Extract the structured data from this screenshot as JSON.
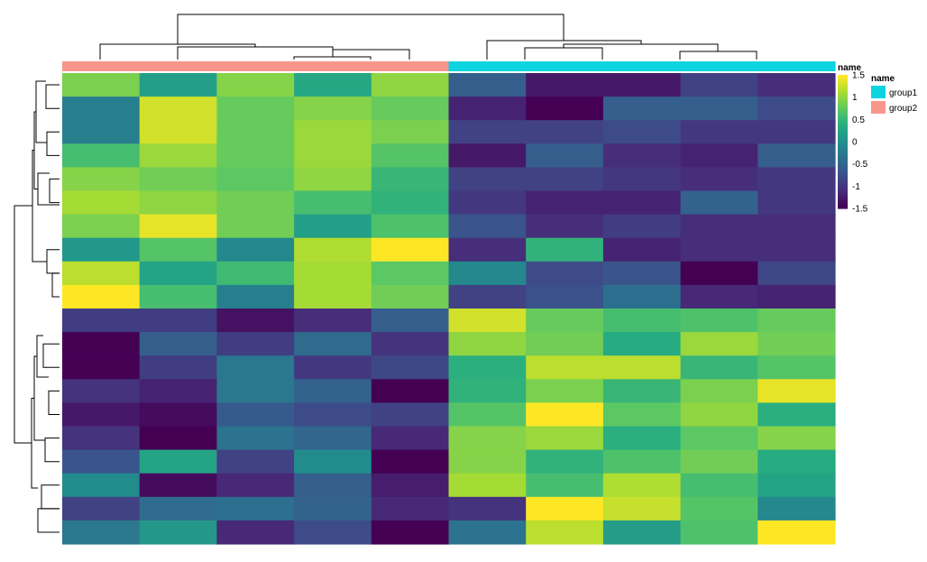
{
  "chart_data": {
    "type": "heatmap",
    "title": "",
    "n_rows": 20,
    "n_cols": 10,
    "values": [
      [
        0.9,
        0.2,
        0.95,
        0.3,
        1.0,
        -0.6,
        -1.3,
        -1.3,
        -0.9,
        -1.1
      ],
      [
        -0.2,
        1.3,
        0.8,
        0.95,
        0.8,
        -1.2,
        -1.6,
        -0.6,
        -0.6,
        -0.8
      ],
      [
        -0.2,
        1.3,
        0.8,
        1.05,
        0.9,
        -0.9,
        -0.9,
        -0.8,
        -1.0,
        -1.0
      ],
      [
        0.6,
        1.05,
        0.8,
        1.05,
        0.7,
        -1.3,
        -0.6,
        -1.1,
        -1.2,
        -0.6
      ],
      [
        0.95,
        0.85,
        0.75,
        1.0,
        0.5,
        -0.9,
        -0.9,
        -1.0,
        -1.1,
        -1.0
      ],
      [
        1.1,
        1.0,
        0.85,
        0.6,
        0.45,
        -1.0,
        -1.2,
        -1.2,
        -0.55,
        -1.0
      ],
      [
        0.9,
        1.4,
        0.85,
        0.2,
        0.65,
        -0.7,
        -1.1,
        -0.95,
        -1.1,
        -1.1
      ],
      [
        0.1,
        0.7,
        -0.1,
        1.15,
        1.5,
        -1.1,
        0.45,
        -1.2,
        -1.1,
        -1.1
      ],
      [
        1.2,
        0.25,
        0.55,
        1.1,
        0.75,
        -0.1,
        -0.8,
        -0.7,
        -1.5,
        -0.85
      ],
      [
        1.5,
        0.6,
        -0.2,
        1.1,
        0.85,
        -0.9,
        -0.75,
        -0.4,
        -1.15,
        -1.2
      ],
      [
        -0.95,
        -0.95,
        -1.35,
        -1.1,
        -0.6,
        1.3,
        0.8,
        0.6,
        0.65,
        0.8
      ],
      [
        -1.55,
        -0.6,
        -0.95,
        -0.45,
        -1.05,
        1.0,
        0.85,
        0.35,
        1.05,
        0.85
      ],
      [
        -1.55,
        -0.95,
        -0.3,
        -1.0,
        -0.85,
        0.4,
        1.2,
        1.2,
        0.5,
        0.7
      ],
      [
        -1.05,
        -1.2,
        -0.3,
        -0.55,
        -1.5,
        0.45,
        0.9,
        0.5,
        0.9,
        1.4
      ],
      [
        -1.3,
        -1.4,
        -0.65,
        -0.8,
        -0.9,
        0.7,
        1.5,
        0.75,
        1.0,
        0.4
      ],
      [
        -1.05,
        -1.6,
        -0.35,
        -0.5,
        -1.15,
        0.95,
        1.05,
        0.4,
        0.75,
        0.95
      ],
      [
        -0.7,
        0.25,
        -0.9,
        -0.05,
        -1.6,
        0.95,
        0.45,
        0.65,
        0.85,
        0.35
      ],
      [
        -0.05,
        -1.4,
        -1.15,
        -0.6,
        -1.25,
        1.1,
        0.6,
        1.15,
        0.6,
        0.25
      ],
      [
        -0.9,
        -0.45,
        -0.4,
        -0.55,
        -1.15,
        -1.05,
        1.5,
        1.25,
        0.7,
        -0.1
      ],
      [
        -0.3,
        0.1,
        -1.15,
        -0.8,
        -1.55,
        -0.35,
        1.2,
        0.15,
        0.65,
        1.5
      ]
    ],
    "column_groups": [
      "group2",
      "group2",
      "group2",
      "group2",
      "group2",
      "group1",
      "group1",
      "group1",
      "group1",
      "group1"
    ],
    "color_scale": {
      "min": -1.5,
      "max": 1.5,
      "colormap": "viridis",
      "ticks": [
        "1.5",
        "1",
        "0.5",
        "0",
        "-0.5",
        "-1",
        "-1.5"
      ],
      "title": "name"
    },
    "annotation_legend": {
      "title": "name",
      "entries": [
        {
          "label": "group1",
          "color": "#0bd4e0"
        },
        {
          "label": "group2",
          "color": "#f9968c"
        }
      ]
    },
    "grid": false,
    "legend_position": "right",
    "colors": {
      "dendrogram": "#000000",
      "background": "#ffffff"
    }
  }
}
